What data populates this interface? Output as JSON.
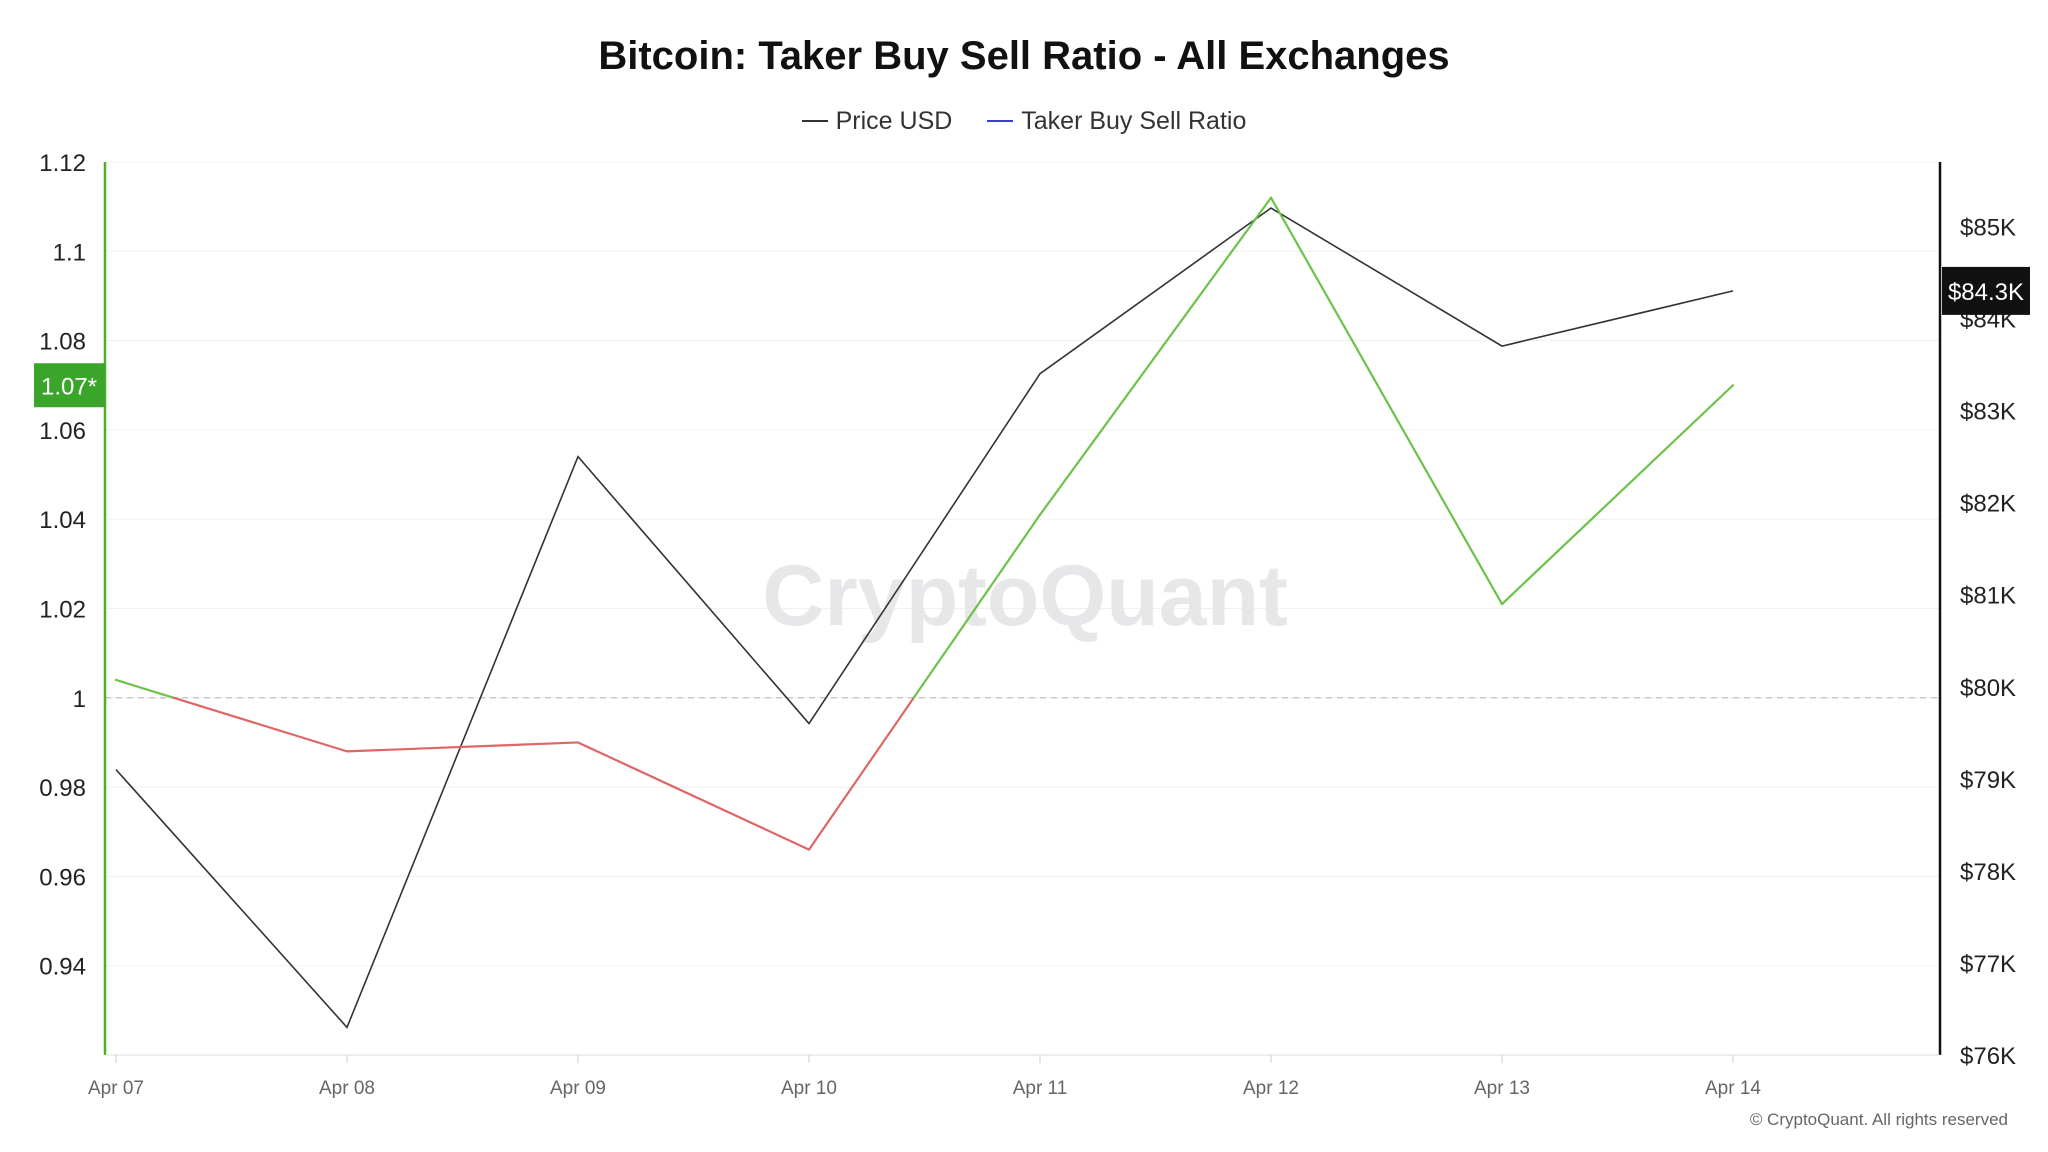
{
  "title": "Bitcoin: Taker Buy Sell Ratio - All Exchanges",
  "legend": [
    {
      "label": "Price USD",
      "color": "#333333"
    },
    {
      "label": "Taker Buy Sell Ratio",
      "color": "#3b3bd6"
    }
  ],
  "watermark": "CryptoQuant",
  "copyright": "© CryptoQuant. All rights reserved",
  "colors": {
    "ratio_above": "#6cc24a",
    "ratio_below": "#e06666",
    "price": "#333333",
    "axis_left": "#4caf28",
    "axis_right": "#111111"
  },
  "chart_data": {
    "type": "line",
    "title": "Bitcoin: Taker Buy Sell Ratio - All Exchanges",
    "x": [
      "Apr 07",
      "Apr 08",
      "Apr 09",
      "Apr 10",
      "Apr 11",
      "Apr 12",
      "Apr 13",
      "Apr 14"
    ],
    "series": [
      {
        "name": "Taker Buy Sell Ratio",
        "axis": "left",
        "values": [
          1.004,
          0.988,
          0.99,
          0.966,
          1.041,
          1.112,
          1.021,
          1.07
        ]
      },
      {
        "name": "Price USD",
        "axis": "right",
        "values": [
          79100,
          76300,
          82500,
          79600,
          83400,
          85200,
          83700,
          84300
        ]
      }
    ],
    "y_left": {
      "ticks": [
        "1.12",
        "1.1",
        "1.08",
        "1.06",
        "1.04",
        "1.02",
        "1",
        "0.98",
        "0.96",
        "0.94"
      ],
      "range": [
        0.92,
        1.12
      ],
      "reference": 1.0,
      "current_label": "1.07*",
      "current_value": 1.07
    },
    "y_right": {
      "ticks": [
        "$85K",
        "$84K",
        "$83K",
        "$82K",
        "$81K",
        "$80K",
        "$79K",
        "$78K",
        "$77K",
        "$76K"
      ],
      "tick_values": [
        85000,
        84000,
        83000,
        82000,
        81000,
        80000,
        79000,
        78000,
        77000,
        76000
      ],
      "range": [
        76000,
        85700
      ],
      "current_label": "$84.3K",
      "current_value": 84300
    },
    "grid": true
  }
}
